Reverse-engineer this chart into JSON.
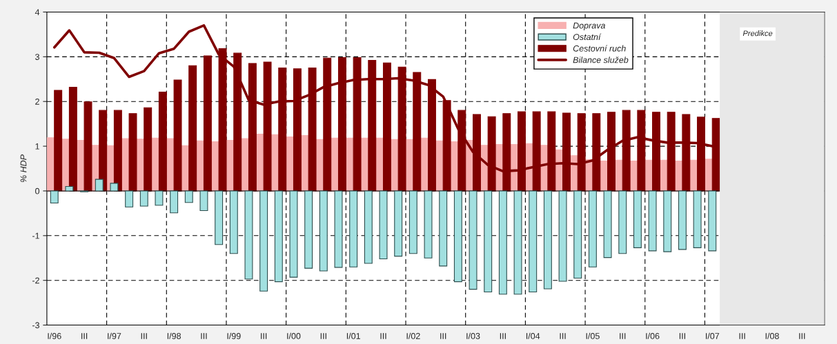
{
  "chart_data": {
    "type": "bar",
    "ylabel": "% HDP",
    "categories": [
      "I/96",
      null,
      "III",
      null,
      "I/97",
      null,
      "III",
      null,
      "I/98",
      null,
      "III",
      null,
      "I/99",
      null,
      "III",
      null,
      "I/00",
      null,
      "III",
      null,
      "I/01",
      null,
      "III",
      null,
      "I/02",
      null,
      "III",
      null,
      "I/03",
      null,
      "III",
      null,
      "I/04",
      null,
      "III",
      null,
      "I/05",
      null,
      "III",
      null,
      "I/06",
      null,
      "III",
      null,
      "I/07",
      null,
      "III",
      null,
      "I/08",
      null,
      "III",
      null
    ],
    "series": [
      {
        "name": "Doprava",
        "color": "#f7b0b0",
        "values": [
          1.19,
          1.16,
          1.13,
          1.02,
          1.01,
          1.17,
          1.16,
          1.18,
          1.17,
          1.01,
          1.12,
          1.1,
          1.13,
          1.17,
          1.27,
          1.26,
          1.21,
          1.24,
          1.15,
          1.18,
          1.18,
          1.18,
          1.18,
          1.15,
          1.15,
          1.18,
          1.12,
          1.1,
          1.13,
          1.02,
          1.04,
          1.04,
          1.06,
          1.02,
          0.92,
          0.79,
          0.7,
          0.67,
          0.69,
          0.67,
          0.69,
          0.69,
          0.67,
          0.69,
          0.71,
          null,
          null,
          null,
          null,
          null,
          null,
          null
        ]
      },
      {
        "name": "Ostatní",
        "color": "#a2e0e0",
        "values": [
          -0.27,
          0.1,
          -0.02,
          0.26,
          0.17,
          -0.36,
          -0.34,
          -0.32,
          -0.49,
          -0.26,
          -0.44,
          -1.2,
          -1.4,
          -1.97,
          -2.24,
          -2.03,
          -1.93,
          -1.73,
          -1.79,
          -1.71,
          -1.7,
          -1.62,
          -1.52,
          -1.46,
          -1.4,
          -1.5,
          -1.68,
          -2.03,
          -2.2,
          -2.26,
          -2.31,
          -2.31,
          -2.26,
          -2.19,
          -2.02,
          -1.95,
          -1.7,
          -1.49,
          -1.4,
          -1.27,
          -1.34,
          -1.36,
          -1.31,
          -1.27,
          -1.34,
          null,
          null,
          null,
          null,
          null,
          null,
          null
        ]
      },
      {
        "name": "Cestovní ruch",
        "color": "#800000",
        "values": [
          2.25,
          2.32,
          1.99,
          1.8,
          1.8,
          1.73,
          1.86,
          2.21,
          2.48,
          2.8,
          3.02,
          3.18,
          3.08,
          2.85,
          2.88,
          2.75,
          2.73,
          2.75,
          2.97,
          2.98,
          2.98,
          2.92,
          2.86,
          2.77,
          2.65,
          2.49,
          2.02,
          1.8,
          1.71,
          1.66,
          1.73,
          1.77,
          1.77,
          1.77,
          1.74,
          1.73,
          1.73,
          1.76,
          1.8,
          1.8,
          1.76,
          1.76,
          1.71,
          1.65,
          1.62,
          null,
          null,
          null,
          null,
          null,
          null,
          null
        ]
      },
      {
        "name": "Bilance služeb",
        "type": "line",
        "color": "#800000",
        "values": [
          3.21,
          3.59,
          3.1,
          3.09,
          2.97,
          2.55,
          2.68,
          3.08,
          3.18,
          3.56,
          3.7,
          3.05,
          2.78,
          2.03,
          1.93,
          2.0,
          2.01,
          2.14,
          2.32,
          2.41,
          2.48,
          2.5,
          2.5,
          2.52,
          2.47,
          2.37,
          2.11,
          1.39,
          0.87,
          0.58,
          0.44,
          0.46,
          0.53,
          0.6,
          0.62,
          0.6,
          0.68,
          0.92,
          1.12,
          1.2,
          1.13,
          1.08,
          1.08,
          1.07,
          1.0,
          null,
          null,
          null,
          null,
          null,
          null,
          null
        ]
      }
    ],
    "ylim": [
      -3,
      4
    ],
    "yticks": [
      -3,
      -2,
      -1,
      0,
      1,
      2,
      3,
      4
    ],
    "grid": true,
    "legend": "top",
    "line_style": "solid",
    "marker": "none",
    "annotations": [
      "Predikce"
    ]
  }
}
